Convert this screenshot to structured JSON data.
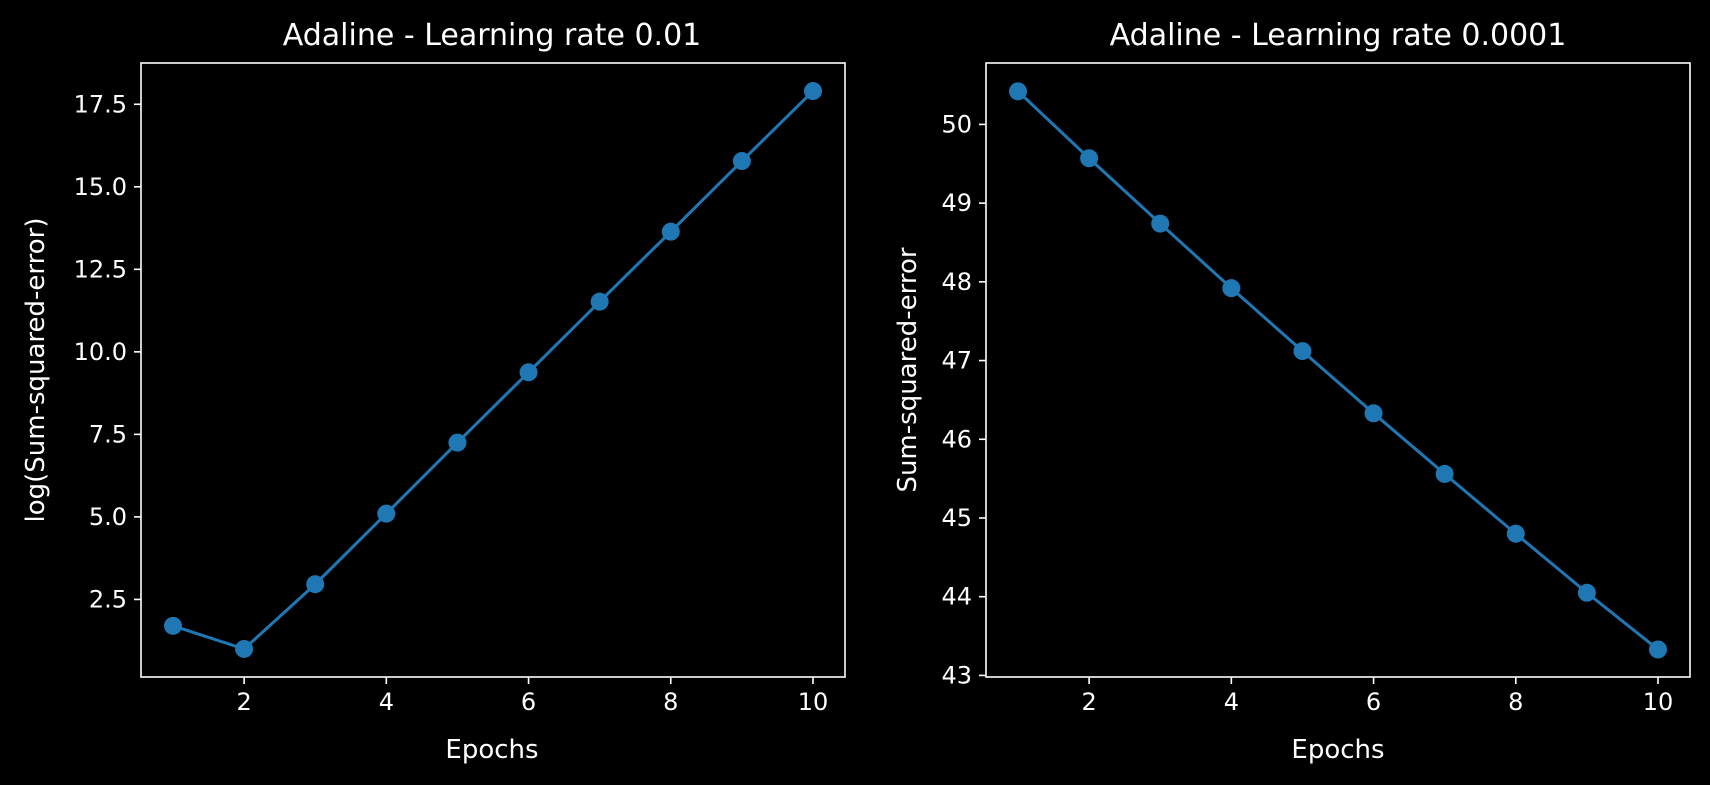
{
  "colors": {
    "background": "#000000",
    "foreground": "#ffffff",
    "series": "#1f77b4"
  },
  "chart_data": [
    {
      "type": "line",
      "title": "Adaline - Learning rate 0.01",
      "xlabel": "Epochs",
      "ylabel": "log(Sum-squared-error)",
      "x": [
        1,
        2,
        3,
        4,
        5,
        6,
        7,
        8,
        9,
        10
      ],
      "series": [
        {
          "values": [
            1.7,
            1.0,
            2.96,
            5.1,
            7.25,
            9.38,
            11.52,
            13.64,
            15.78,
            17.9
          ],
          "marker": "circle",
          "color": "#1f77b4"
        }
      ],
      "xlim": [
        0.55,
        10.45
      ],
      "ylim": [
        0.15,
        18.75
      ],
      "xticks": [
        2,
        4,
        6,
        8,
        10
      ],
      "xtick_labels": [
        "2",
        "4",
        "6",
        "8",
        "10"
      ],
      "yticks": [
        2.5,
        5.0,
        7.5,
        10.0,
        12.5,
        15.0,
        17.5
      ],
      "ytick_labels": [
        "2.5",
        "5.0",
        "7.5",
        "10.0",
        "12.5",
        "15.0",
        "17.5"
      ],
      "grid": false,
      "legend": "none"
    },
    {
      "type": "line",
      "title": "Adaline - Learning rate 0.0001",
      "xlabel": "Epochs",
      "ylabel": "Sum-squared-error",
      "x": [
        1,
        2,
        3,
        4,
        5,
        6,
        7,
        8,
        9,
        10
      ],
      "series": [
        {
          "values": [
            50.42,
            49.57,
            48.74,
            47.92,
            47.12,
            46.33,
            45.56,
            44.8,
            44.05,
            43.33
          ],
          "marker": "circle",
          "color": "#1f77b4"
        }
      ],
      "xlim": [
        0.55,
        10.45
      ],
      "ylim": [
        42.98,
        50.78
      ],
      "xticks": [
        2,
        4,
        6,
        8,
        10
      ],
      "xtick_labels": [
        "2",
        "4",
        "6",
        "8",
        "10"
      ],
      "yticks": [
        43,
        44,
        45,
        46,
        47,
        48,
        49,
        50
      ],
      "ytick_labels": [
        "43",
        "44",
        "45",
        "46",
        "47",
        "48",
        "49",
        "50"
      ],
      "grid": false,
      "legend": "none"
    }
  ]
}
